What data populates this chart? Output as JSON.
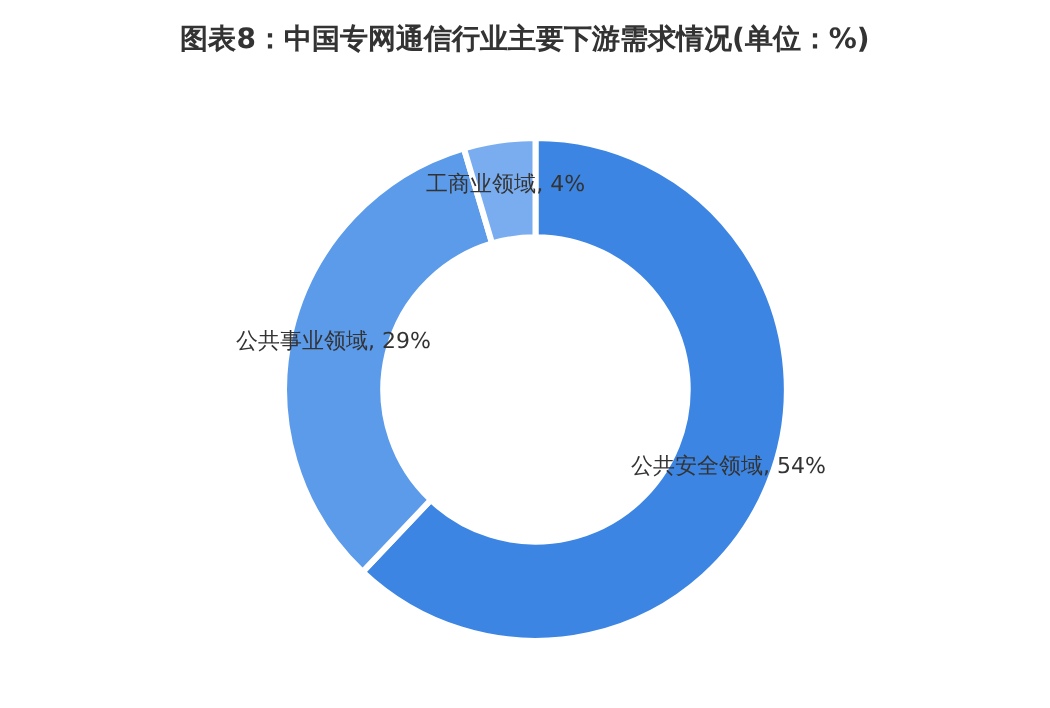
{
  "chart_data": {
    "type": "donut",
    "title": "图表8：中国专网通信行业主要下游需求情况(单位：%)",
    "categories": [
      "公共安全领域",
      "公共事业领域",
      "工商业领域"
    ],
    "values": [
      54,
      29,
      4
    ],
    "colors": [
      "#3d85e3",
      "#5b9bea",
      "#79adf0"
    ],
    "value_labels": [
      "54%",
      "29%",
      "4%"
    ],
    "legend": false
  }
}
